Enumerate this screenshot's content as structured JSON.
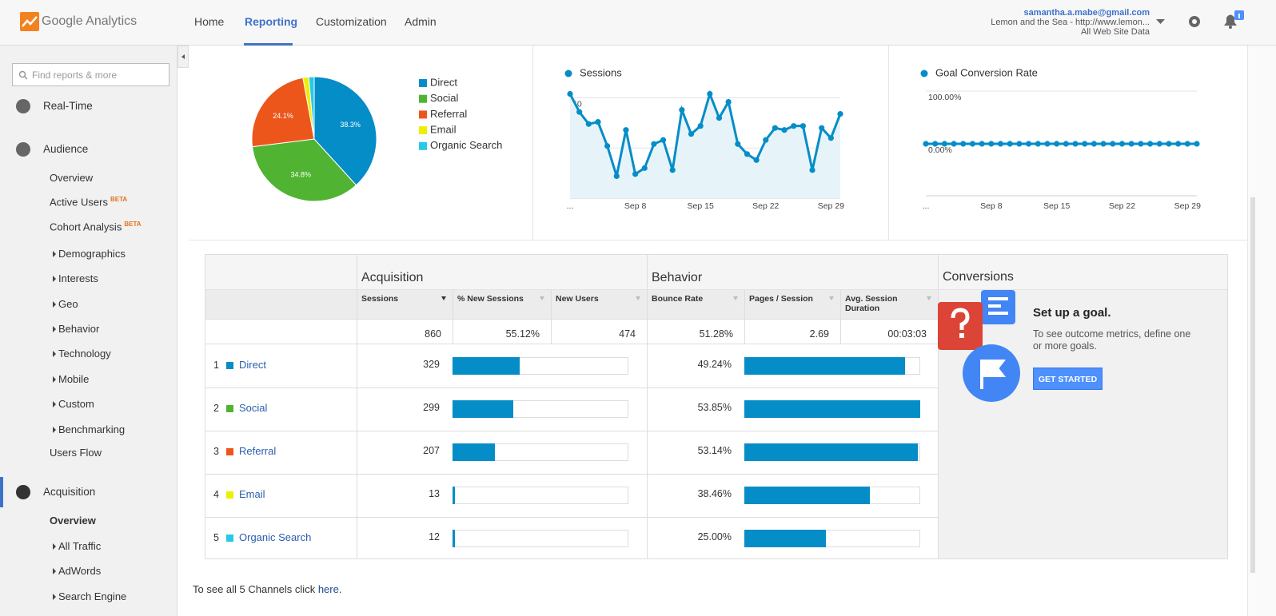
{
  "header": {
    "logo": "Google Analytics",
    "nav": [
      "Home",
      "Reporting",
      "Customization",
      "Admin"
    ],
    "active_nav": 1,
    "account": {
      "email": "samantha.a.mabe@gmail.com",
      "property": "Lemon and the Sea - http://www.lemon...",
      "view": "All Web Site Data"
    }
  },
  "sidebar": {
    "search_placeholder": "Find reports & more",
    "items": [
      {
        "label": "Real-Time",
        "level": 0
      },
      {
        "label": "Audience",
        "level": 0
      },
      {
        "label": "Overview",
        "level": 1
      },
      {
        "label": "Active Users",
        "level": 1,
        "badge": "BETA"
      },
      {
        "label": "Cohort Analysis",
        "level": 1,
        "badge": "BETA"
      },
      {
        "label": "Demographics",
        "level": 1,
        "expandable": true
      },
      {
        "label": "Interests",
        "level": 1,
        "expandable": true
      },
      {
        "label": "Geo",
        "level": 1,
        "expandable": true
      },
      {
        "label": "Behavior",
        "level": 1,
        "expandable": true
      },
      {
        "label": "Technology",
        "level": 1,
        "expandable": true
      },
      {
        "label": "Mobile",
        "level": 1,
        "expandable": true
      },
      {
        "label": "Custom",
        "level": 1,
        "expandable": true
      },
      {
        "label": "Benchmarking",
        "level": 1,
        "expandable": true
      },
      {
        "label": "Users Flow",
        "level": 1
      },
      {
        "label": "Acquisition",
        "level": 0,
        "selected": true
      },
      {
        "label": "Overview",
        "level": 1,
        "current": true
      },
      {
        "label": "All Traffic",
        "level": 1,
        "expandable": true
      },
      {
        "label": "AdWords",
        "level": 1,
        "expandable": true
      },
      {
        "label": "Search Engine",
        "level": 1,
        "expandable": true
      }
    ]
  },
  "chart_data": [
    {
      "type": "pie",
      "categories": [
        "Direct",
        "Social",
        "Referral",
        "Email",
        "Organic Search"
      ],
      "values": [
        38.3,
        34.8,
        24.1,
        1.5,
        1.4
      ],
      "value_labels": [
        "38.3%",
        "34.8%",
        "24.1%",
        null,
        null
      ],
      "colors": [
        "#058dc7",
        "#50b432",
        "#ed561b",
        "#edef00",
        "#24cbe5"
      ]
    },
    {
      "type": "line",
      "categories": [
        "...",
        null,
        null,
        null,
        null,
        null,
        null,
        "Sep 8",
        null,
        null,
        null,
        null,
        null,
        null,
        "Sep 15",
        null,
        null,
        null,
        null,
        null,
        null,
        "Sep 22",
        null,
        null,
        null,
        null,
        null,
        null,
        "Sep 29",
        null
      ],
      "series": [
        {
          "name": "Sessions",
          "color": "#058dc7",
          "values": [
            52,
            43,
            37,
            38,
            26,
            11,
            34,
            12,
            15,
            27,
            29,
            14,
            44,
            32,
            36,
            52,
            40,
            48,
            27,
            22,
            19,
            29,
            35,
            34,
            36,
            36,
            14,
            35,
            30,
            42
          ]
        }
      ],
      "ylim": [
        0,
        55
      ],
      "yticks": [
        25,
        50
      ],
      "grid": true,
      "area": true
    },
    {
      "type": "line",
      "categories": [
        "...",
        null,
        null,
        null,
        null,
        null,
        null,
        "Sep 8",
        null,
        null,
        null,
        null,
        null,
        null,
        "Sep 15",
        null,
        null,
        null,
        null,
        null,
        null,
        "Sep 22",
        null,
        null,
        null,
        null,
        null,
        null,
        "Sep 29",
        null
      ],
      "series": [
        {
          "name": "Goal Conversion Rate",
          "color": "#058dc7",
          "values": [
            0,
            0,
            0,
            0,
            0,
            0,
            0,
            0,
            0,
            0,
            0,
            0,
            0,
            0,
            0,
            0,
            0,
            0,
            0,
            0,
            0,
            0,
            0,
            0,
            0,
            0,
            0,
            0,
            0,
            0
          ]
        }
      ],
      "ylim": [
        0,
        100
      ],
      "yticks": [
        {
          "value": 0,
          "label": "0.00%"
        },
        {
          "value": 100,
          "label": "100.00%"
        }
      ],
      "grid": true,
      "area": false
    }
  ],
  "table": {
    "groups": [
      "Acquisition",
      "Behavior",
      "Conversions"
    ],
    "columns": [
      "Sessions",
      "% New Sessions",
      "New Users",
      "Bounce Rate",
      "Pages / Session",
      "Avg. Session Duration"
    ],
    "totals": [
      "860",
      "55.12%",
      "474",
      "51.28%",
      "2.69",
      "00:03:03"
    ],
    "rows": [
      {
        "rank": "1",
        "name": "Direct",
        "color": "#058dc7",
        "sessions": "329",
        "bounce_rate": "49.24%"
      },
      {
        "rank": "2",
        "name": "Social",
        "color": "#50b432",
        "sessions": "299",
        "bounce_rate": "53.85%"
      },
      {
        "rank": "3",
        "name": "Referral",
        "color": "#ed561b",
        "sessions": "207",
        "bounce_rate": "53.14%"
      },
      {
        "rank": "4",
        "name": "Email",
        "color": "#edef00",
        "sessions": "13",
        "bounce_rate": "38.46%"
      },
      {
        "rank": "5",
        "name": "Organic Search",
        "color": "#24cbe5",
        "sessions": "12",
        "bounce_rate": "25.00%"
      }
    ]
  },
  "conversions": {
    "title": "Set up a goal.",
    "text": "To see outcome metrics, define one or more goals.",
    "button": "GET STARTED"
  },
  "footer": {
    "text": "To see all 5 Channels click ",
    "link": "here",
    "end": "."
  }
}
